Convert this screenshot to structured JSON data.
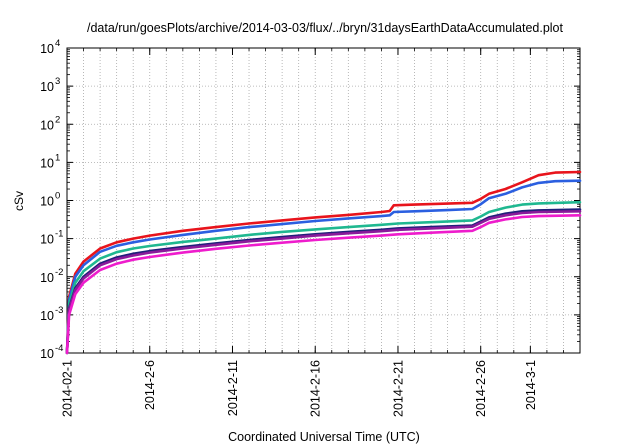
{
  "chart_data": {
    "type": "line",
    "title": "/data/run/goesPlots/archive/2014-03-03/flux/../bryn/31daysEarthDataAccumulated.plot",
    "xlabel": "Coordinated Universal Time (UTC)",
    "ylabel": "cSv",
    "yscale": "log",
    "ylim": [
      0.0001,
      10000
    ],
    "xlim": [
      "2014-02-01",
      "2014-03-04"
    ],
    "grid": true,
    "y_ticks": [
      {
        "base": "10",
        "exp": "-4",
        "value": 0.0001
      },
      {
        "base": "10",
        "exp": "-3",
        "value": 0.001
      },
      {
        "base": "10",
        "exp": "-2",
        "value": 0.01
      },
      {
        "base": "10",
        "exp": "-1",
        "value": 0.1
      },
      {
        "base": "10",
        "exp": "0",
        "value": 1
      },
      {
        "base": "10",
        "exp": "1",
        "value": 10
      },
      {
        "base": "10",
        "exp": "2",
        "value": 100
      },
      {
        "base": "10",
        "exp": "3",
        "value": 1000
      },
      {
        "base": "10",
        "exp": "4",
        "value": 10000
      }
    ],
    "x_ticks": [
      {
        "label": "2014-02-1",
        "date": "2014-02-01"
      },
      {
        "label": "2014-2-6",
        "date": "2014-02-06"
      },
      {
        "label": "2014-2-11",
        "date": "2014-02-11"
      },
      {
        "label": "2014-2-16",
        "date": "2014-02-16"
      },
      {
        "label": "2014-2-21",
        "date": "2014-02-21"
      },
      {
        "label": "2014-2-26",
        "date": "2014-02-26"
      },
      {
        "label": "2014-3-1",
        "date": "2014-03-01"
      }
    ],
    "series": [
      {
        "color": "#e8141c",
        "points": [
          [
            "2014-02-01T00:00",
            0.0001
          ],
          [
            "2014-02-01T03:00",
            0.003
          ],
          [
            "2014-02-01T12:00",
            0.012
          ],
          [
            "2014-02-02T00:00",
            0.025
          ],
          [
            "2014-02-03T00:00",
            0.055
          ],
          [
            "2014-02-04T00:00",
            0.08
          ],
          [
            "2014-02-05T00:00",
            0.1
          ],
          [
            "2014-02-06T00:00",
            0.12
          ],
          [
            "2014-02-08T00:00",
            0.16
          ],
          [
            "2014-02-10T00:00",
            0.2
          ],
          [
            "2014-02-12T00:00",
            0.25
          ],
          [
            "2014-02-14T00:00",
            0.3
          ],
          [
            "2014-02-16T00:00",
            0.36
          ],
          [
            "2014-02-18T00:00",
            0.42
          ],
          [
            "2014-02-20T00:00",
            0.5
          ],
          [
            "2014-02-20T12:00",
            0.53
          ],
          [
            "2014-02-20T18:00",
            0.75
          ],
          [
            "2014-02-22T00:00",
            0.78
          ],
          [
            "2014-02-24T00:00",
            0.83
          ],
          [
            "2014-02-25T12:00",
            0.87
          ],
          [
            "2014-02-26T00:00",
            1.1
          ],
          [
            "2014-02-26T12:00",
            1.5
          ],
          [
            "2014-02-27T12:00",
            2.0
          ],
          [
            "2014-02-28T12:00",
            3.0
          ],
          [
            "2014-03-01T12:00",
            4.6
          ],
          [
            "2014-03-02T12:00",
            5.4
          ],
          [
            "2014-03-04T00:00",
            5.6
          ]
        ]
      },
      {
        "color": "#2b5fe0",
        "points": [
          [
            "2014-02-01T00:00",
            0.0001
          ],
          [
            "2014-02-01T03:00",
            0.0025
          ],
          [
            "2014-02-01T12:00",
            0.01
          ],
          [
            "2014-02-02T00:00",
            0.02
          ],
          [
            "2014-02-03T00:00",
            0.045
          ],
          [
            "2014-02-04T00:00",
            0.065
          ],
          [
            "2014-02-05T00:00",
            0.08
          ],
          [
            "2014-02-06T00:00",
            0.095
          ],
          [
            "2014-02-08T00:00",
            0.125
          ],
          [
            "2014-02-10T00:00",
            0.16
          ],
          [
            "2014-02-12T00:00",
            0.2
          ],
          [
            "2014-02-14T00:00",
            0.24
          ],
          [
            "2014-02-16T00:00",
            0.29
          ],
          [
            "2014-02-18T00:00",
            0.34
          ],
          [
            "2014-02-20T00:00",
            0.39
          ],
          [
            "2014-02-20T12:00",
            0.41
          ],
          [
            "2014-02-20T18:00",
            0.5
          ],
          [
            "2014-02-22T00:00",
            0.52
          ],
          [
            "2014-02-24T00:00",
            0.56
          ],
          [
            "2014-02-25T12:00",
            0.6
          ],
          [
            "2014-02-26T00:00",
            0.8
          ],
          [
            "2014-02-26T12:00",
            1.15
          ],
          [
            "2014-02-27T12:00",
            1.5
          ],
          [
            "2014-02-28T12:00",
            2.2
          ],
          [
            "2014-03-01T12:00",
            2.9
          ],
          [
            "2014-03-02T12:00",
            3.2
          ],
          [
            "2014-03-04T00:00",
            3.3
          ]
        ]
      },
      {
        "color": "#1fb890",
        "points": [
          [
            "2014-02-01T00:00",
            0.0001
          ],
          [
            "2014-02-01T03:00",
            0.002
          ],
          [
            "2014-02-01T12:00",
            0.007
          ],
          [
            "2014-02-02T00:00",
            0.014
          ],
          [
            "2014-02-03T00:00",
            0.03
          ],
          [
            "2014-02-04T00:00",
            0.044
          ],
          [
            "2014-02-05T00:00",
            0.055
          ],
          [
            "2014-02-06T00:00",
            0.064
          ],
          [
            "2014-02-08T00:00",
            0.082
          ],
          [
            "2014-02-10T00:00",
            0.1
          ],
          [
            "2014-02-12T00:00",
            0.125
          ],
          [
            "2014-02-14T00:00",
            0.15
          ],
          [
            "2014-02-16T00:00",
            0.175
          ],
          [
            "2014-02-18T00:00",
            0.2
          ],
          [
            "2014-02-20T00:00",
            0.23
          ],
          [
            "2014-02-21T00:00",
            0.25
          ],
          [
            "2014-02-23T00:00",
            0.27
          ],
          [
            "2014-02-25T12:00",
            0.3
          ],
          [
            "2014-02-26T00:00",
            0.38
          ],
          [
            "2014-02-26T12:00",
            0.5
          ],
          [
            "2014-02-27T12:00",
            0.65
          ],
          [
            "2014-02-28T12:00",
            0.78
          ],
          [
            "2014-03-01T12:00",
            0.84
          ],
          [
            "2014-03-04T00:00",
            0.9
          ]
        ]
      },
      {
        "color": "#1f1f7a",
        "points": [
          [
            "2014-02-01T00:00",
            0.0001
          ],
          [
            "2014-02-01T03:00",
            0.0015
          ],
          [
            "2014-02-01T12:00",
            0.005
          ],
          [
            "2014-02-02T00:00",
            0.01
          ],
          [
            "2014-02-03T00:00",
            0.022
          ],
          [
            "2014-02-04T00:00",
            0.032
          ],
          [
            "2014-02-05T00:00",
            0.04
          ],
          [
            "2014-02-06T00:00",
            0.047
          ],
          [
            "2014-02-08T00:00",
            0.06
          ],
          [
            "2014-02-10T00:00",
            0.075
          ],
          [
            "2014-02-12T00:00",
            0.092
          ],
          [
            "2014-02-14T00:00",
            0.11
          ],
          [
            "2014-02-16T00:00",
            0.13
          ],
          [
            "2014-02-18T00:00",
            0.15
          ],
          [
            "2014-02-20T00:00",
            0.17
          ],
          [
            "2014-02-21T00:00",
            0.185
          ],
          [
            "2014-02-23T00:00",
            0.2
          ],
          [
            "2014-02-25T12:00",
            0.22
          ],
          [
            "2014-02-26T00:00",
            0.28
          ],
          [
            "2014-02-26T12:00",
            0.36
          ],
          [
            "2014-02-27T12:00",
            0.45
          ],
          [
            "2014-02-28T12:00",
            0.52
          ],
          [
            "2014-03-01T12:00",
            0.55
          ],
          [
            "2014-03-04T00:00",
            0.58
          ]
        ]
      },
      {
        "color": "#8a1a9a",
        "points": [
          [
            "2014-02-01T00:00",
            0.0001
          ],
          [
            "2014-02-01T03:00",
            0.0014
          ],
          [
            "2014-02-01T12:00",
            0.0045
          ],
          [
            "2014-02-02T00:00",
            0.009
          ],
          [
            "2014-02-03T00:00",
            0.02
          ],
          [
            "2014-02-04T00:00",
            0.029
          ],
          [
            "2014-02-05T00:00",
            0.036
          ],
          [
            "2014-02-06T00:00",
            0.043
          ],
          [
            "2014-02-08T00:00",
            0.055
          ],
          [
            "2014-02-10T00:00",
            0.069
          ],
          [
            "2014-02-12T00:00",
            0.085
          ],
          [
            "2014-02-14T00:00",
            0.1
          ],
          [
            "2014-02-16T00:00",
            0.12
          ],
          [
            "2014-02-18T00:00",
            0.138
          ],
          [
            "2014-02-20T00:00",
            0.157
          ],
          [
            "2014-02-21T00:00",
            0.17
          ],
          [
            "2014-02-23T00:00",
            0.185
          ],
          [
            "2014-02-25T12:00",
            0.205
          ],
          [
            "2014-02-26T00:00",
            0.26
          ],
          [
            "2014-02-26T12:00",
            0.33
          ],
          [
            "2014-02-27T12:00",
            0.41
          ],
          [
            "2014-02-28T12:00",
            0.47
          ],
          [
            "2014-03-01T12:00",
            0.5
          ],
          [
            "2014-03-04T00:00",
            0.52
          ]
        ]
      },
      {
        "color": "#ee1ccc",
        "points": [
          [
            "2014-02-01T00:00",
            0.0001
          ],
          [
            "2014-02-01T03:00",
            0.001
          ],
          [
            "2014-02-01T12:00",
            0.0035
          ],
          [
            "2014-02-02T00:00",
            0.007
          ],
          [
            "2014-02-03T00:00",
            0.015
          ],
          [
            "2014-02-04T00:00",
            0.022
          ],
          [
            "2014-02-05T00:00",
            0.028
          ],
          [
            "2014-02-06T00:00",
            0.033
          ],
          [
            "2014-02-08T00:00",
            0.043
          ],
          [
            "2014-02-10T00:00",
            0.054
          ],
          [
            "2014-02-12T00:00",
            0.066
          ],
          [
            "2014-02-14T00:00",
            0.078
          ],
          [
            "2014-02-16T00:00",
            0.092
          ],
          [
            "2014-02-18T00:00",
            0.106
          ],
          [
            "2014-02-20T00:00",
            0.12
          ],
          [
            "2014-02-21T00:00",
            0.13
          ],
          [
            "2014-02-23T00:00",
            0.143
          ],
          [
            "2014-02-25T12:00",
            0.16
          ],
          [
            "2014-02-26T00:00",
            0.2
          ],
          [
            "2014-02-26T12:00",
            0.26
          ],
          [
            "2014-02-27T12:00",
            0.32
          ],
          [
            "2014-02-28T12:00",
            0.37
          ],
          [
            "2014-03-01T12:00",
            0.39
          ],
          [
            "2014-03-04T00:00",
            0.41
          ]
        ]
      }
    ]
  }
}
